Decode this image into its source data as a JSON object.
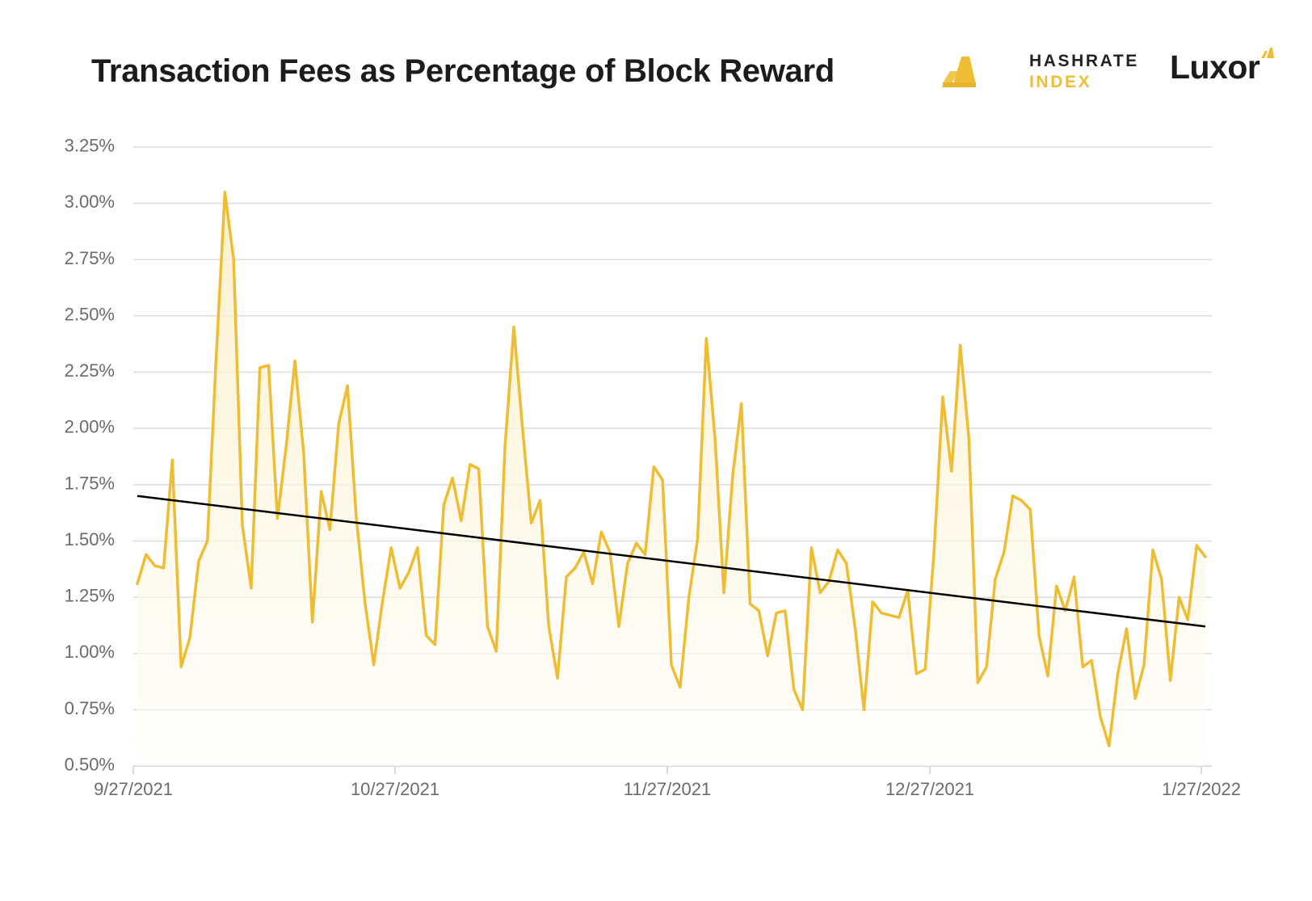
{
  "header": {
    "title": "Transaction Fees as Percentage of Block Reward"
  },
  "brands": {
    "hashrate_line1": "HASHRATE",
    "hashrate_line2": "INDEX",
    "luxor": "Luxor"
  },
  "colors": {
    "series": "#efbd33",
    "area_top": "#fbeec6",
    "trend": "#000000",
    "grid": "#dcdcdc",
    "brand_dark": "#1c1c1c"
  },
  "chart_data": {
    "type": "area",
    "title": "Transaction Fees as Percentage of Block Reward",
    "xlabel": "",
    "ylabel": "",
    "x_range": [
      "9/27/2021",
      "1/27/2022"
    ],
    "x_ticks": [
      "9/27/2021",
      "10/27/2021",
      "11/27/2021",
      "12/27/2021",
      "1/27/2022"
    ],
    "ylim": [
      0.5,
      3.25
    ],
    "y_ticks": [
      "0.50%",
      "0.75%",
      "1.00%",
      "1.25%",
      "1.50%",
      "1.75%",
      "2.00%",
      "2.25%",
      "2.50%",
      "2.75%",
      "3.00%",
      "3.25%"
    ],
    "y_tick_values": [
      0.5,
      0.75,
      1.0,
      1.25,
      1.5,
      1.75,
      2.0,
      2.25,
      2.5,
      2.75,
      3.0,
      3.25
    ],
    "grid": true,
    "legend": "none",
    "series": [
      {
        "values": [
          1.31,
          1.44,
          1.39,
          1.38,
          1.86,
          0.94,
          1.07,
          1.41,
          1.5,
          2.31,
          3.05,
          2.75,
          1.57,
          1.29,
          2.27,
          2.28,
          1.6,
          1.92,
          2.3,
          1.89,
          1.14,
          1.72,
          1.55,
          2.02,
          2.19,
          1.61,
          1.23,
          0.95,
          1.23,
          1.47,
          1.29,
          1.36,
          1.47,
          1.08,
          1.04,
          1.66,
          1.78,
          1.59,
          1.84,
          1.82,
          1.12,
          1.01,
          1.92,
          2.45,
          2.0,
          1.58,
          1.68,
          1.12,
          0.89,
          1.34,
          1.38,
          1.45,
          1.31,
          1.54,
          1.45,
          1.12,
          1.4,
          1.49,
          1.44,
          1.83,
          1.77,
          0.95,
          0.85,
          1.25,
          1.51,
          2.4,
          1.95,
          1.27,
          1.79,
          2.11,
          1.22,
          1.19,
          0.99,
          1.18,
          1.19,
          0.84,
          0.75,
          1.47,
          1.27,
          1.32,
          1.46,
          1.4,
          1.11,
          0.75,
          1.23,
          1.18,
          1.17,
          1.16,
          1.28,
          0.91,
          0.93,
          1.45,
          2.14,
          1.81,
          2.37,
          1.95,
          0.87,
          0.94,
          1.33,
          1.45,
          1.7,
          1.68,
          1.64,
          1.08,
          0.9,
          1.3,
          1.19,
          1.34,
          0.94,
          0.97,
          0.72,
          0.59,
          0.91,
          1.11,
          0.8,
          0.95,
          1.46,
          1.33,
          0.88,
          1.25,
          1.15,
          1.48,
          1.43
        ]
      }
    ],
    "trend_line": {
      "start": 1.7,
      "end": 1.12
    }
  }
}
